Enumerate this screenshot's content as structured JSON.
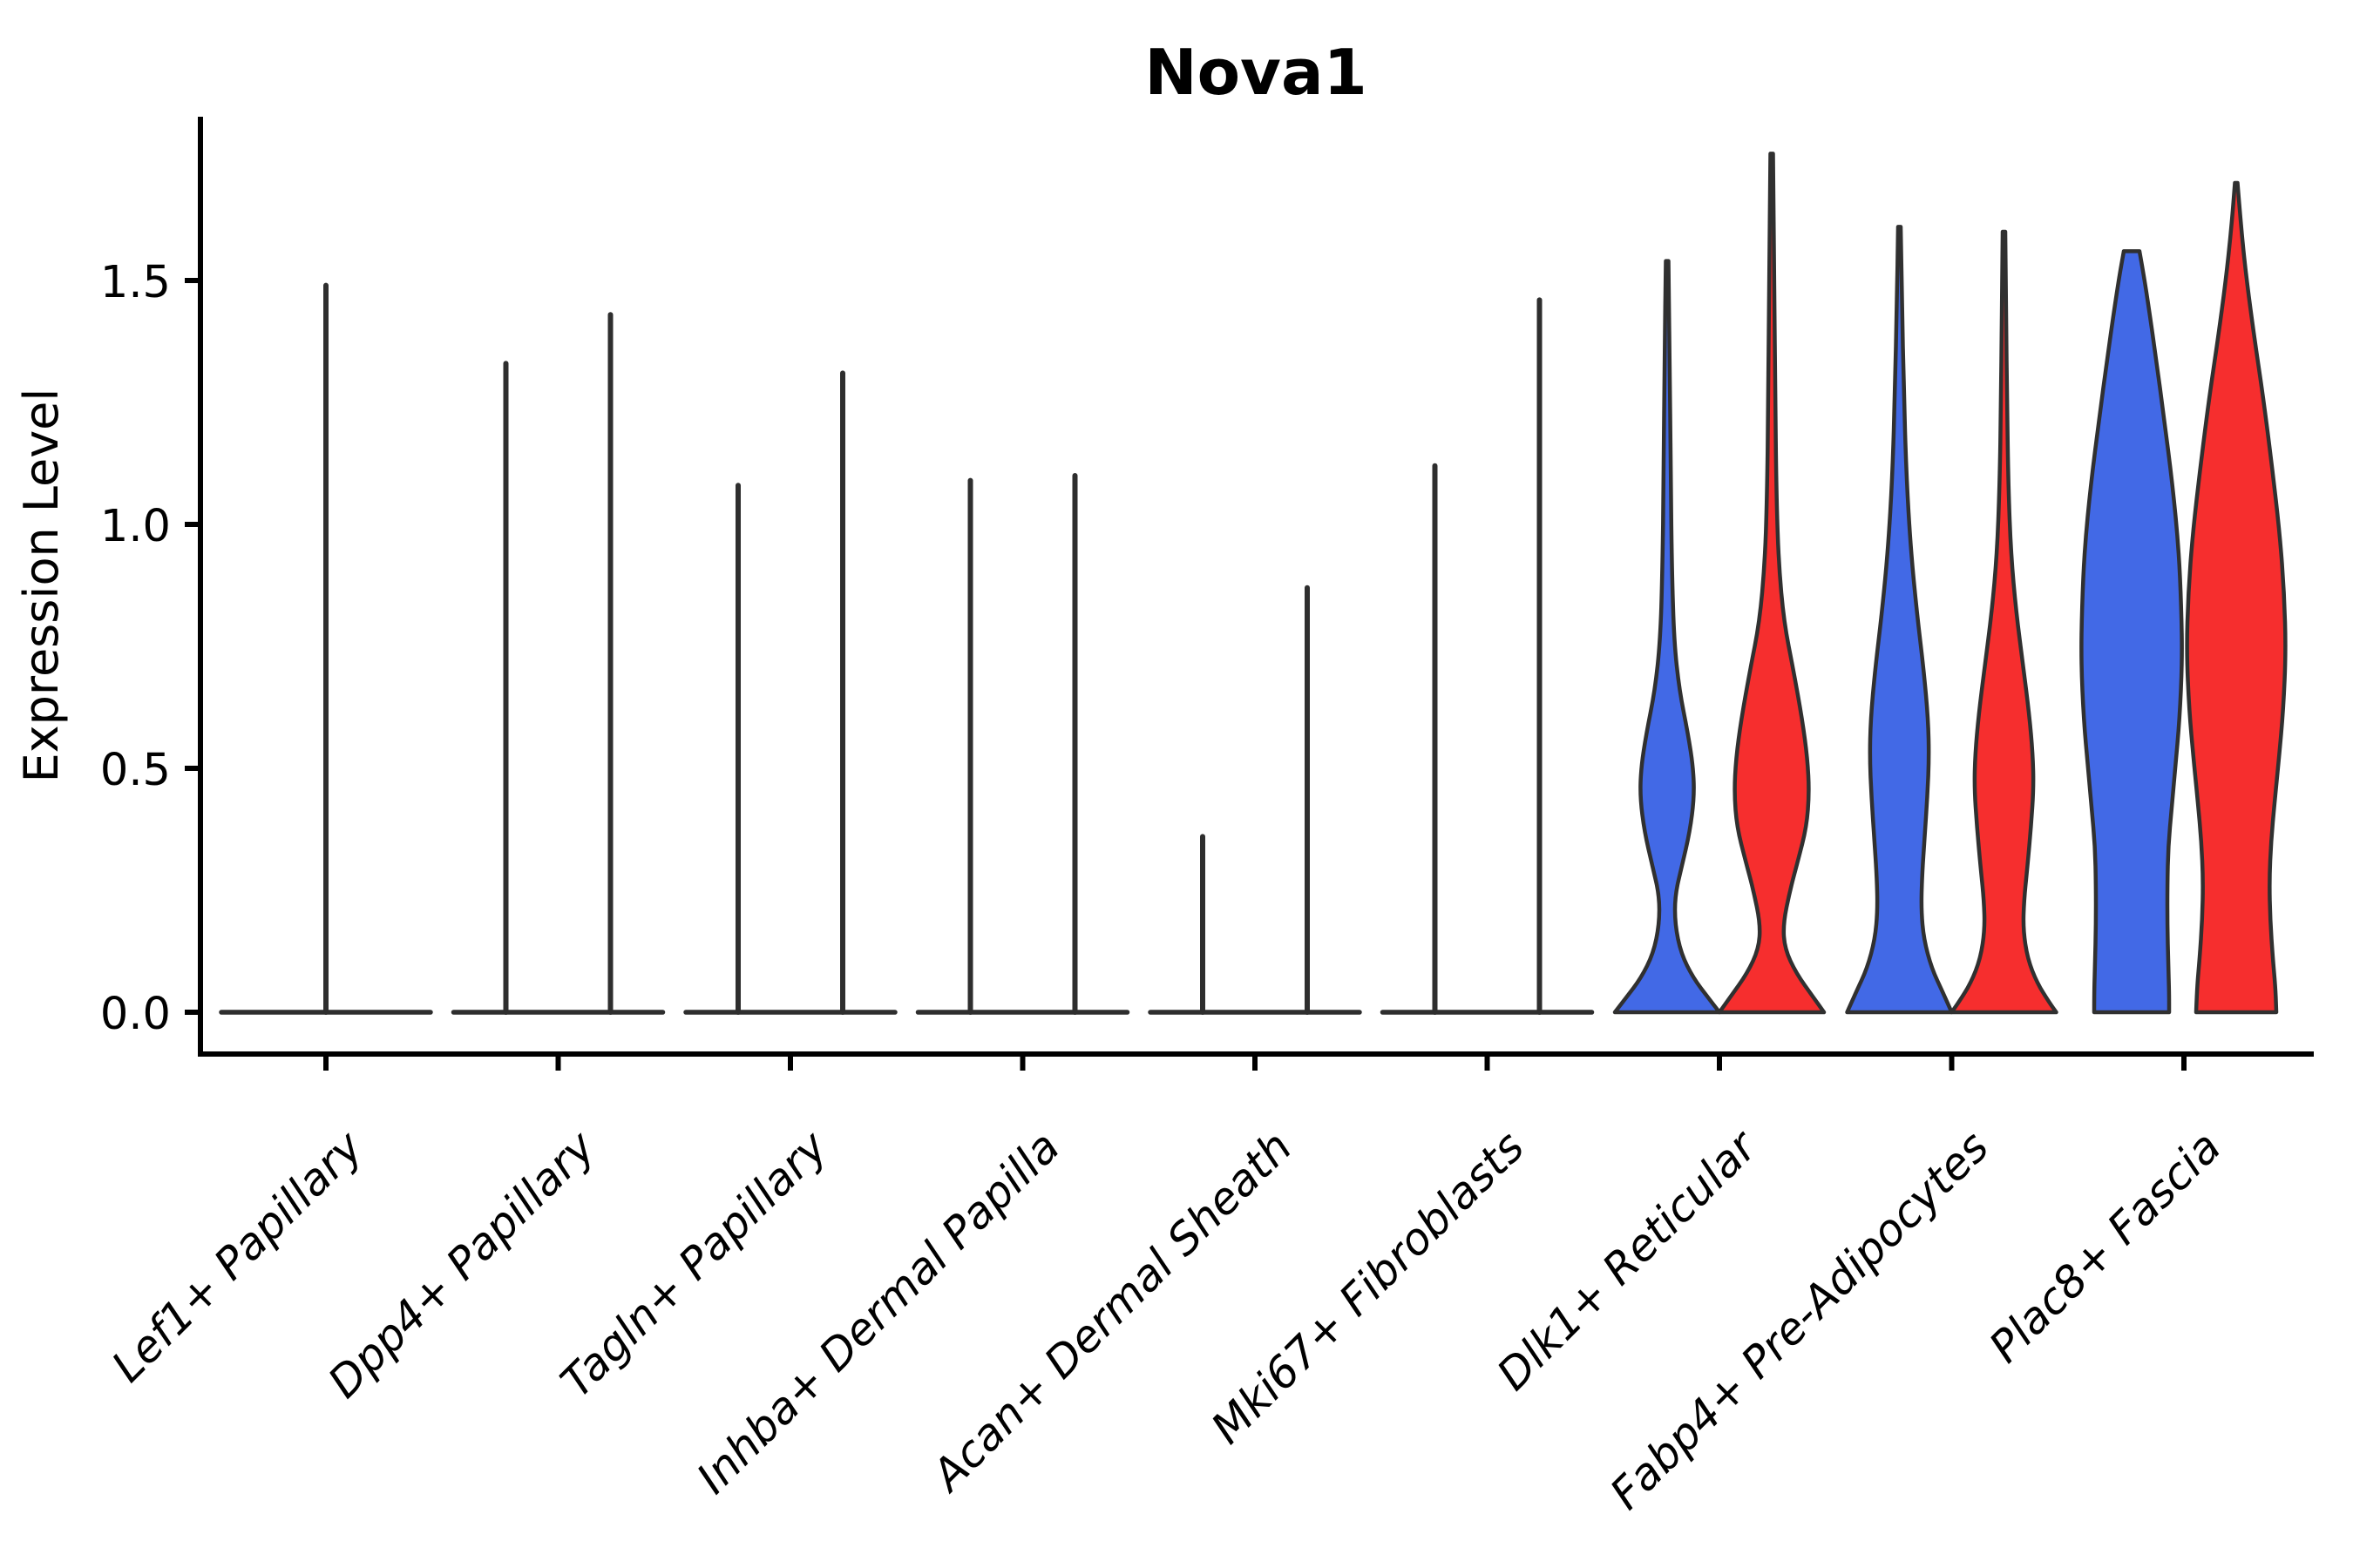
{
  "chart_data": {
    "type": "violin",
    "title": "Nova1",
    "xlabel": "",
    "ylabel": "Expression Level",
    "yticks": [
      "0.0",
      "0.5",
      "1.0",
      "1.5"
    ],
    "ytick_values": [
      0,
      0.5,
      1.0,
      1.5
    ],
    "ylim": [
      -0.09,
      1.84
    ],
    "grid": false,
    "legend": "none",
    "colors": {
      "blue": "#4269E6",
      "red": "#F62E2E",
      "outline": "#303030",
      "spike": "#2E2E2E",
      "axis": "#000000"
    },
    "categories": [
      "Lef1+ Papillary",
      "Dpp4+ Papillary",
      "Tagln+ Papillary",
      "Inhba+ Dermal Papilla",
      "Acan+ Dermal Sheath",
      "Mki67+ Fibroblasts",
      "Dlk1+ Reticular",
      "Fabp4+ Pre-Adipocytes",
      "Plac8+ Fascia"
    ],
    "groups": [
      {
        "label": "Lef1+ Papillary",
        "kind": "spike",
        "items": [
          {
            "side": "center",
            "offset": 0,
            "max": 1.49
          }
        ]
      },
      {
        "label": "Dpp4+ Papillary",
        "kind": "spike",
        "items": [
          {
            "side": "left",
            "color": "blue",
            "offset": -60,
            "max": 1.33
          },
          {
            "side": "right",
            "color": "red",
            "offset": 60,
            "max": 1.43
          }
        ]
      },
      {
        "label": "Tagln+ Papillary",
        "kind": "spike",
        "items": [
          {
            "side": "left",
            "color": "blue",
            "offset": -60,
            "max": 1.08
          },
          {
            "side": "right",
            "color": "red",
            "offset": 60,
            "max": 1.31
          }
        ]
      },
      {
        "label": "Inhba+ Dermal Papilla",
        "kind": "spike",
        "items": [
          {
            "side": "left",
            "color": "blue",
            "offset": -60,
            "max": 1.09
          },
          {
            "side": "right",
            "color": "red",
            "offset": 60,
            "max": 1.1
          }
        ]
      },
      {
        "label": "Acan+ Dermal Sheath",
        "kind": "spike",
        "items": [
          {
            "side": "left",
            "color": "blue",
            "offset": -60,
            "max": 0.36
          },
          {
            "side": "right",
            "color": "red",
            "offset": 60,
            "max": 0.87
          }
        ]
      },
      {
        "label": "Mki67+ Fibroblasts",
        "kind": "spike",
        "items": [
          {
            "side": "left",
            "color": "blue",
            "offset": -60,
            "max": 1.12
          },
          {
            "side": "right",
            "color": "red",
            "offset": 60,
            "max": 1.46
          }
        ]
      },
      {
        "label": "Dlk1+ Reticular",
        "kind": "violin",
        "items": [
          {
            "side": "left",
            "color": "blue",
            "offset": -60,
            "max": 1.54,
            "profile": [
              [
                1.54,
                1.5
              ],
              [
                1.35,
                3
              ],
              [
                1.1,
                4
              ],
              [
                0.9,
                5.5
              ],
              [
                0.76,
                8
              ],
              [
                0.66,
                14
              ],
              [
                0.57,
                24
              ],
              [
                0.5,
                30
              ],
              [
                0.44,
                31
              ],
              [
                0.37,
                26
              ],
              [
                0.3,
                17
              ],
              [
                0.24,
                9
              ],
              [
                0.18,
                9
              ],
              [
                0.12,
                16
              ],
              [
                0.07,
                30
              ],
              [
                0.03,
                47
              ],
              [
                0,
                60
              ]
            ]
          },
          {
            "side": "right",
            "color": "red",
            "offset": 60,
            "max": 1.76,
            "profile": [
              [
                1.76,
                1.5
              ],
              [
                1.5,
                3
              ],
              [
                1.25,
                4
              ],
              [
                1.05,
                5.5
              ],
              [
                0.92,
                8
              ],
              [
                0.8,
                14
              ],
              [
                0.7,
                25
              ],
              [
                0.6,
                35
              ],
              [
                0.52,
                41
              ],
              [
                0.45,
                43
              ],
              [
                0.38,
                40
              ],
              [
                0.31,
                30
              ],
              [
                0.25,
                21
              ],
              [
                0.18,
                13
              ],
              [
                0.13,
                15
              ],
              [
                0.08,
                28
              ],
              [
                0.03,
                48
              ],
              [
                0,
                60
              ]
            ]
          }
        ]
      },
      {
        "label": "Fabp4+ Pre-Adipocytes",
        "kind": "violin",
        "items": [
          {
            "side": "left",
            "color": "blue",
            "offset": -60,
            "max": 1.61,
            "profile": [
              [
                1.61,
                1.5
              ],
              [
                1.45,
                3
              ],
              [
                1.28,
                5
              ],
              [
                1.1,
                8
              ],
              [
                0.95,
                13
              ],
              [
                0.82,
                20
              ],
              [
                0.7,
                28
              ],
              [
                0.6,
                33
              ],
              [
                0.52,
                34
              ],
              [
                0.44,
                32
              ],
              [
                0.36,
                29
              ],
              [
                0.28,
                26
              ],
              [
                0.21,
                25
              ],
              [
                0.15,
                28
              ],
              [
                0.09,
                37
              ],
              [
                0.04,
                50
              ],
              [
                0,
                60
              ]
            ]
          },
          {
            "side": "right",
            "color": "red",
            "offset": 60,
            "max": 1.6,
            "profile": [
              [
                1.6,
                1.5
              ],
              [
                1.42,
                2.5
              ],
              [
                1.25,
                3.5
              ],
              [
                1.08,
                5
              ],
              [
                0.94,
                8
              ],
              [
                0.82,
                14
              ],
              [
                0.71,
                22
              ],
              [
                0.61,
                29
              ],
              [
                0.53,
                33
              ],
              [
                0.46,
                34
              ],
              [
                0.38,
                31
              ],
              [
                0.3,
                27
              ],
              [
                0.23,
                23
              ],
              [
                0.17,
                22
              ],
              [
                0.11,
                27
              ],
              [
                0.06,
                38
              ],
              [
                0.02,
                52
              ],
              [
                0,
                60
              ]
            ]
          }
        ]
      },
      {
        "label": "Plac8+ Fascia",
        "kind": "violin",
        "items": [
          {
            "side": "left",
            "color": "blue",
            "offset": -60,
            "max": 1.56,
            "profile": [
              [
                1.56,
                9
              ],
              [
                1.51,
                14
              ],
              [
                1.44,
                20
              ],
              [
                1.34,
                28
              ],
              [
                1.22,
                37
              ],
              [
                1.08,
                47
              ],
              [
                0.95,
                54
              ],
              [
                0.83,
                57
              ],
              [
                0.72,
                58
              ],
              [
                0.6,
                55
              ],
              [
                0.5,
                50
              ],
              [
                0.42,
                46
              ],
              [
                0.34,
                42
              ],
              [
                0.26,
                41
              ],
              [
                0.18,
                41
              ],
              [
                0.1,
                42
              ],
              [
                0.04,
                43
              ],
              [
                0,
                43
              ]
            ]
          },
          {
            "side": "right",
            "color": "red",
            "offset": 60,
            "max": 1.7,
            "profile": [
              [
                1.7,
                1.5
              ],
              [
                1.6,
                6
              ],
              [
                1.5,
                12
              ],
              [
                1.38,
                21
              ],
              [
                1.26,
                31
              ],
              [
                1.12,
                41
              ],
              [
                0.98,
                50
              ],
              [
                0.86,
                55
              ],
              [
                0.74,
                57
              ],
              [
                0.62,
                54
              ],
              [
                0.52,
                49
              ],
              [
                0.43,
                44
              ],
              [
                0.35,
                40
              ],
              [
                0.27,
                38
              ],
              [
                0.19,
                39
              ],
              [
                0.11,
                42
              ],
              [
                0.05,
                45
              ],
              [
                0,
                46
              ]
            ]
          }
        ]
      }
    ]
  }
}
